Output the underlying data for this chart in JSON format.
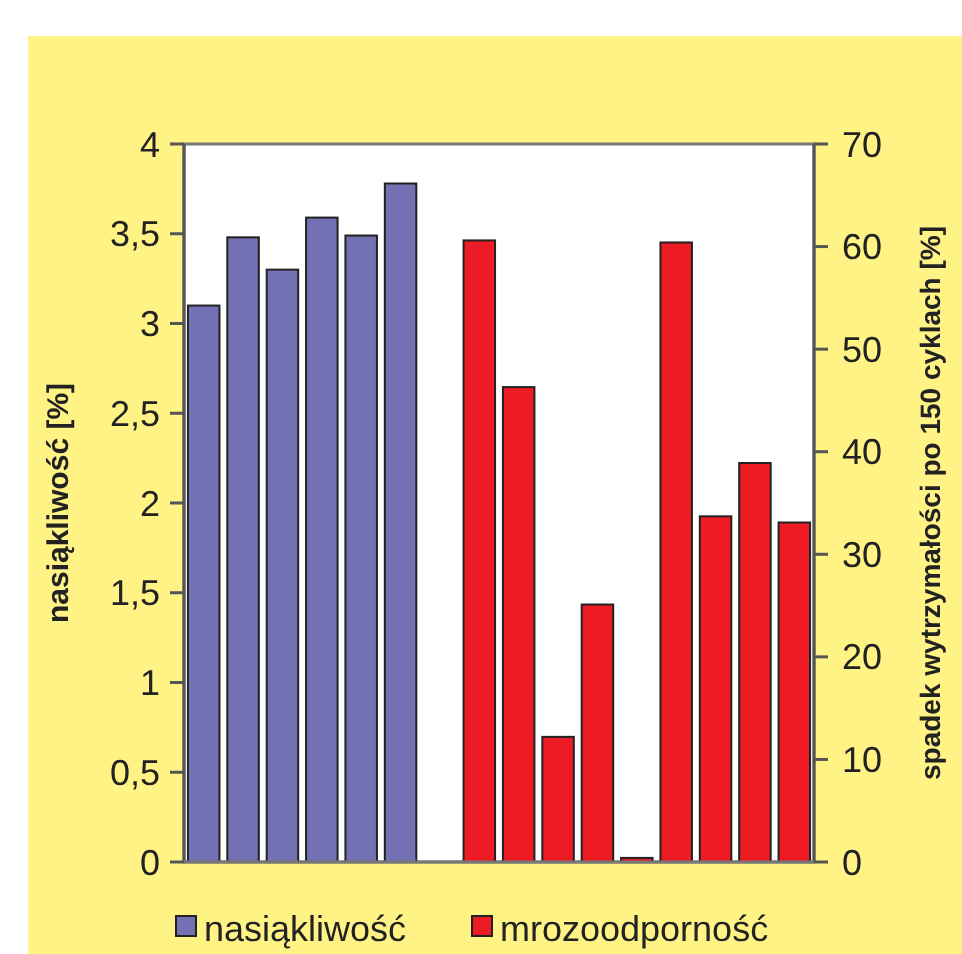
{
  "chart_data": {
    "type": "bar",
    "ylabel": "nasiąkliwość [%]",
    "y2label": "spadek wytrzymałości po 150 cyklach [%]",
    "categories": [
      null,
      null,
      null,
      null,
      null,
      null,
      null,
      null,
      null,
      null,
      null,
      null,
      null,
      null,
      null,
      null
    ],
    "series": [
      {
        "name": "nasiąkliwość",
        "color": "#7470b4",
        "values": [
          3.1,
          3.48,
          3.3,
          3.59,
          3.49,
          3.78,
          null,
          null,
          null,
          null,
          null,
          null,
          null,
          null,
          null,
          null
        ]
      },
      {
        "name": "mrozoodporność",
        "color": "#ed1c24",
        "axis": "y2",
        "values": [
          null,
          null,
          null,
          null,
          null,
          null,
          null,
          60.6,
          46.3,
          12.2,
          25.1,
          0.4,
          60.4,
          33.7,
          38.9,
          33.1
        ]
      }
    ],
    "ylim": [
      0,
      4
    ],
    "yticks": [
      0,
      {
        "value": 0.5,
        "label": "0,5"
      },
      1,
      {
        "value": 1.5,
        "label": "1,5"
      },
      2,
      {
        "value": 2.5,
        "label": "2,5"
      },
      3,
      {
        "value": 3.5,
        "label": "3,5"
      },
      4
    ],
    "y2lim": [
      0,
      70
    ],
    "y2ticks": [
      0,
      10,
      20,
      30,
      40,
      50,
      60,
      70
    ],
    "legend": "bottom",
    "grid": false
  }
}
